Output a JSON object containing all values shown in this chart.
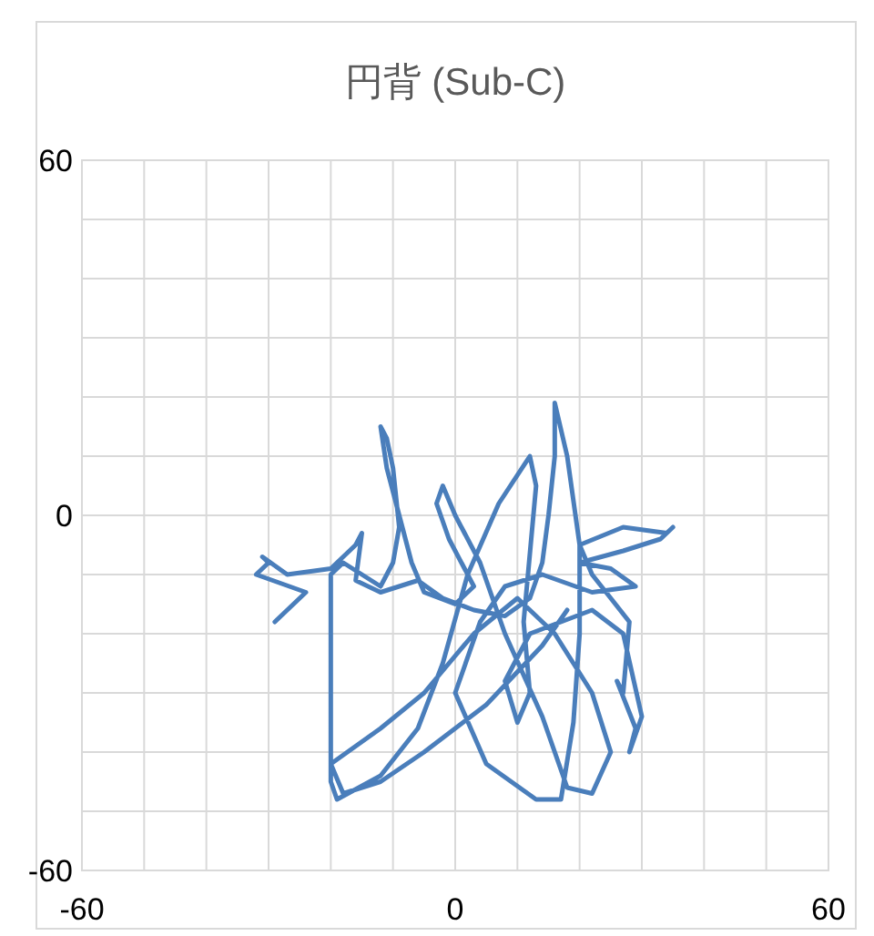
{
  "chart_data": {
    "type": "line",
    "title": "円背 (Sub-C)",
    "xlim": [
      -60,
      60
    ],
    "ylim": [
      -60,
      60
    ],
    "xticks": [
      -60,
      {
        "value": -50,
        "label": null
      },
      {
        "value": -40,
        "label": null
      },
      {
        "value": -30,
        "label": null
      },
      {
        "value": -20,
        "label": null
      },
      {
        "value": -10,
        "label": null
      },
      0,
      {
        "value": 10,
        "label": null
      },
      {
        "value": 20,
        "label": null
      },
      {
        "value": 30,
        "label": null
      },
      {
        "value": 40,
        "label": null
      },
      {
        "value": 50,
        "label": null
      },
      60
    ],
    "yticks": [
      -60,
      {
        "value": -50,
        "label": null
      },
      {
        "value": -40,
        "label": null
      },
      {
        "value": -30,
        "label": null
      },
      {
        "value": -20,
        "label": null
      },
      {
        "value": -10,
        "label": null
      },
      0,
      {
        "value": 10,
        "label": null
      },
      {
        "value": 20,
        "label": null
      },
      {
        "value": 30,
        "label": null
      },
      {
        "value": 40,
        "label": null
      },
      {
        "value": 50,
        "label": null
      },
      60
    ],
    "grid": true,
    "marker": "none",
    "line_style": "solid",
    "series": [
      {
        "color": "#4a7ebb",
        "x": [
          -29,
          -24,
          -32,
          -30,
          -31,
          -27,
          -20,
          -16,
          -15,
          -16,
          -12,
          -6,
          -2,
          3,
          8,
          12,
          14,
          15,
          16,
          16,
          18,
          20,
          20,
          19,
          17,
          13,
          5,
          0,
          4,
          8,
          14,
          22,
          29,
          25,
          20,
          27,
          33,
          35,
          34,
          27,
          20,
          22,
          28,
          27,
          26,
          29,
          28,
          30,
          27,
          22,
          12,
          8,
          10,
          12,
          11,
          13,
          12,
          7,
          2,
          -2,
          -6,
          -12,
          -19,
          -20,
          -20,
          -20,
          -20,
          -20,
          -18,
          -12,
          -10,
          -9,
          -10,
          -11,
          -12,
          -11,
          -7,
          -5,
          0,
          3,
          -1,
          -3,
          -2,
          0,
          4,
          8,
          14,
          18,
          22,
          25,
          22,
          16,
          10,
          3,
          -5,
          -12,
          -20,
          -18,
          -12,
          -5,
          5,
          14,
          18
        ],
        "values": [
          -18,
          -13,
          -10,
          -8,
          -7,
          -10,
          -9,
          -5,
          -3,
          -11,
          -13,
          -11,
          -14,
          -16,
          -17,
          -14,
          -8,
          0,
          10,
          19,
          10,
          -5,
          -20,
          -35,
          -48,
          -48,
          -42,
          -30,
          -18,
          -12,
          -10,
          -13,
          -12,
          -9,
          -8,
          -6,
          -4,
          -2,
          -3,
          -2,
          -5,
          -10,
          -18,
          -30,
          -28,
          -36,
          -40,
          -34,
          -20,
          -16,
          -20,
          -28,
          -35,
          -30,
          -18,
          5,
          10,
          2,
          -10,
          -25,
          -36,
          -44,
          -48,
          -45,
          -35,
          -22,
          -15,
          -10,
          -8,
          -12,
          -8,
          -2,
          8,
          13,
          15,
          8,
          -8,
          -13,
          -15,
          -12,
          -4,
          2,
          5,
          0,
          -8,
          -20,
          -34,
          -46,
          -47,
          -40,
          -30,
          -20,
          -14,
          -20,
          -30,
          -36,
          -42,
          -47,
          -45,
          -40,
          -32,
          -22,
          -16
        ]
      }
    ]
  }
}
